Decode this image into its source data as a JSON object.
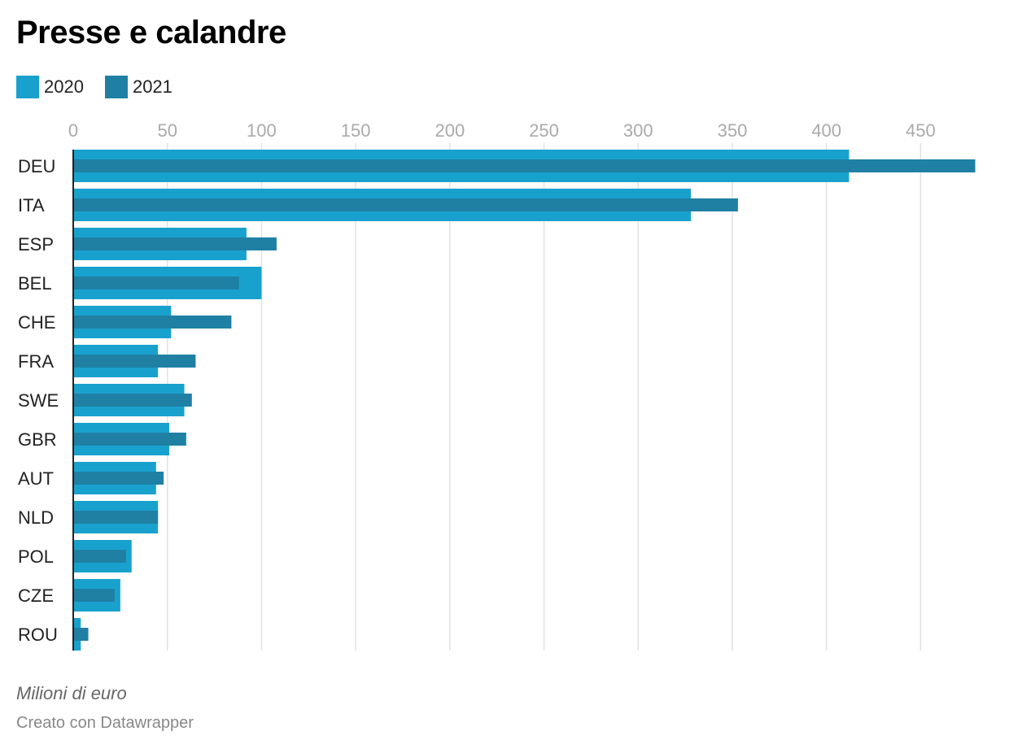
{
  "colors": {
    "series_2020": "#19a1ce",
    "series_2021": "#1f80a4",
    "grid": "#e2e2e2",
    "axis": "#222222",
    "tick_label": "#aaaaaa",
    "category_label": "#222222"
  },
  "chart_data": {
    "type": "bar",
    "orientation": "horizontal",
    "title": "Presse e calandre",
    "categories": [
      "DEU",
      "ITA",
      "ESP",
      "BEL",
      "CHE",
      "FRA",
      "SWE",
      "GBR",
      "AUT",
      "NLD",
      "POL",
      "CZE",
      "ROU"
    ],
    "series": [
      {
        "name": "2020",
        "values": [
          412,
          328,
          92,
          100,
          52,
          45,
          59,
          51,
          44,
          45,
          31,
          25,
          4
        ]
      },
      {
        "name": "2021",
        "values": [
          479,
          353,
          108,
          88,
          84,
          65,
          63,
          60,
          48,
          45,
          28,
          22,
          8
        ]
      }
    ],
    "xlim": [
      0,
      480
    ],
    "xticks": [
      "0",
      "50",
      "100",
      "150",
      "200",
      "250",
      "300",
      "350",
      "400",
      "450"
    ],
    "grid": true,
    "legend_position": "top-left"
  },
  "footer": {
    "unit_note": "Milioni di euro",
    "credit": "Creato con Datawrapper"
  }
}
